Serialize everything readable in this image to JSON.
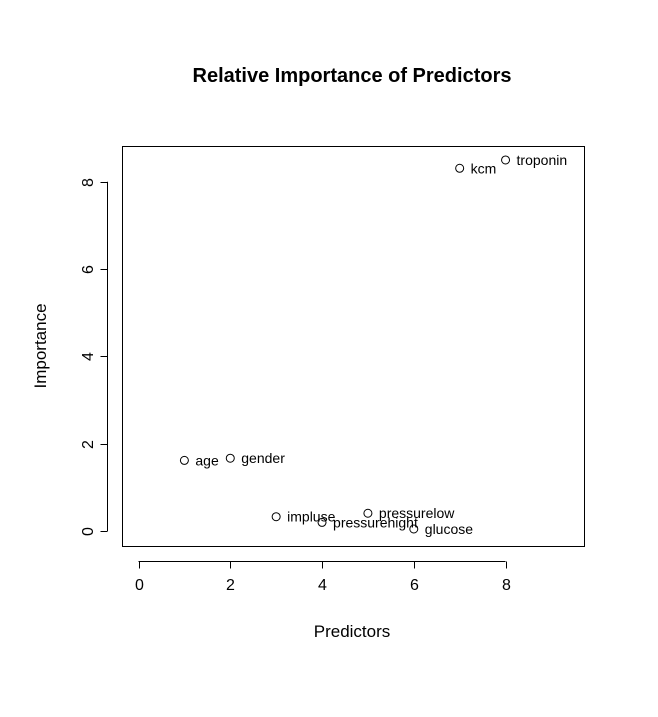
{
  "chart_data": {
    "type": "scatter",
    "title": "Relative Importance of Predictors",
    "xlabel": "Predictors",
    "ylabel": "Importance",
    "xlim": [
      -0.36,
      9.71
    ],
    "ylim": [
      -0.34,
      8.82
    ],
    "xticks": [
      0,
      2,
      4,
      6,
      8
    ],
    "yticks": [
      0,
      2,
      4,
      6,
      8
    ],
    "grid": false,
    "legend": "none",
    "points": [
      {
        "x": 1,
        "y": 1.62,
        "label": "age"
      },
      {
        "x": 2,
        "y": 1.67,
        "label": "gender"
      },
      {
        "x": 3,
        "y": 0.33,
        "label": "impluse"
      },
      {
        "x": 4,
        "y": 0.2,
        "label": "pressurehight"
      },
      {
        "x": 5,
        "y": 0.41,
        "label": "pressurelow"
      },
      {
        "x": 6,
        "y": 0.05,
        "label": "glucose"
      },
      {
        "x": 7,
        "y": 8.31,
        "label": "kcm"
      },
      {
        "x": 8,
        "y": 8.5,
        "label": "troponin"
      }
    ]
  }
}
